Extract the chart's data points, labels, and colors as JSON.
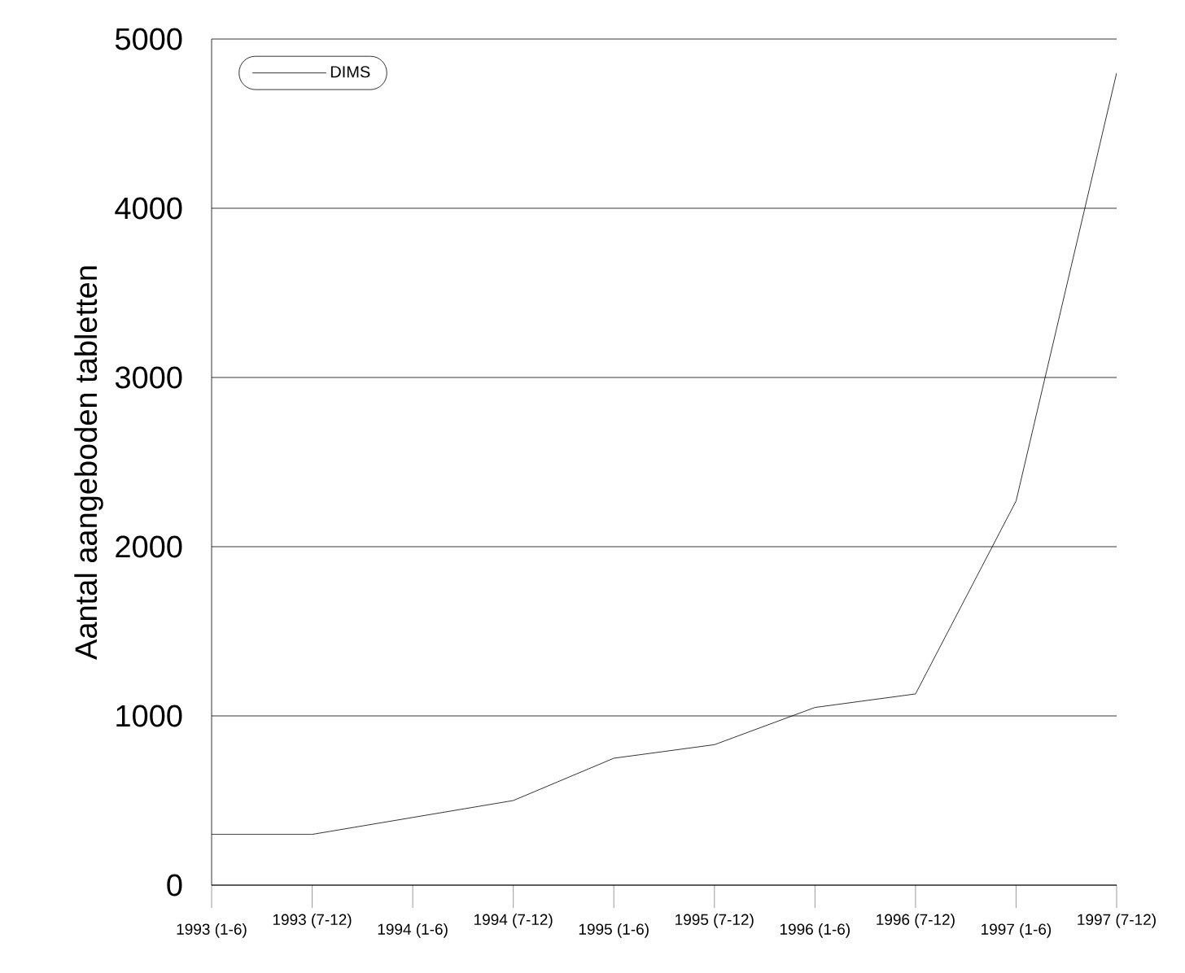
{
  "chart_data": {
    "type": "line",
    "ylabel": "Aantal aangeboden tabletten",
    "categories": [
      "1993 (1-6)",
      "1993 (7-12)",
      "1994 (1-6)",
      "1994 (7-12)",
      "1995 (1-6)",
      "1995 (7-12)",
      "1996 (1-6)",
      "1996 (7-12)",
      "1997 (1-6)",
      "1997 (7-12)"
    ],
    "series": [
      {
        "name": "DIMS",
        "color": "#000000",
        "values": [
          300,
          300,
          400,
          500,
          750,
          830,
          1050,
          1130,
          2270,
          4800
        ]
      }
    ],
    "ylim": [
      0,
      5000
    ],
    "yticks": [
      0,
      1000,
      2000,
      3000,
      4000,
      5000
    ],
    "grid": "y",
    "legend": "top left",
    "marker": "none",
    "line_style": "solid"
  }
}
